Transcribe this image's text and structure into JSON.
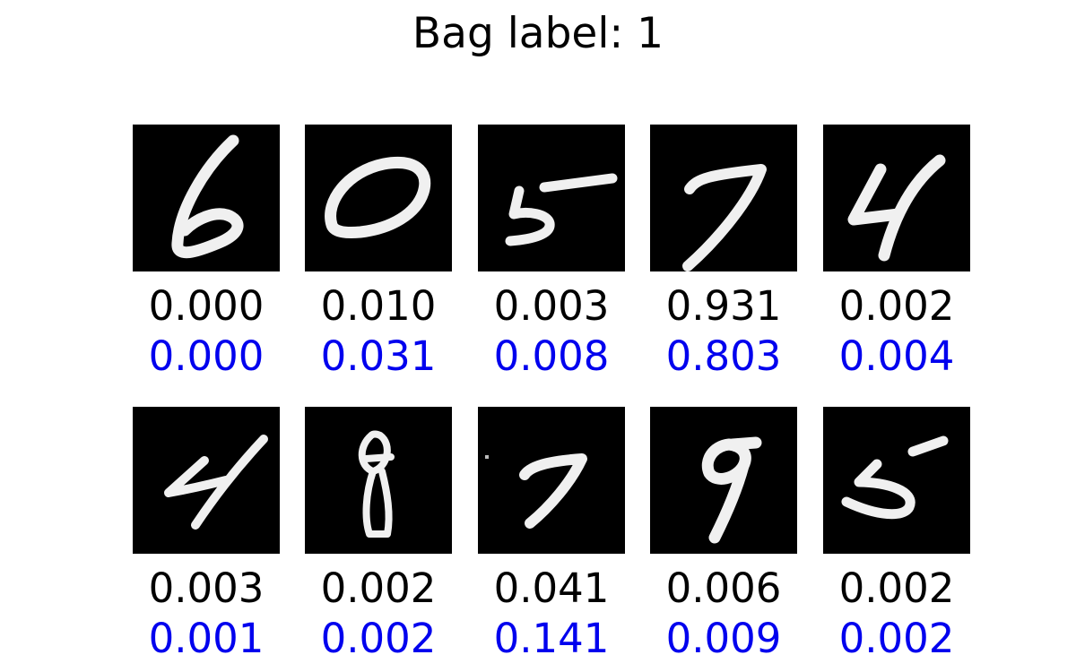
{
  "title": "Bag label: 1",
  "colors": {
    "primary_text": "#000000",
    "secondary_text": "#0000ee",
    "image_background": "#000000",
    "digit_stroke": "#f0f0f0"
  },
  "instances": [
    {
      "digit": "6",
      "score_a": "0.000",
      "score_b": "0.000"
    },
    {
      "digit": "0",
      "score_a": "0.010",
      "score_b": "0.031"
    },
    {
      "digit": "5",
      "score_a": "0.003",
      "score_b": "0.008"
    },
    {
      "digit": "7",
      "score_a": "0.931",
      "score_b": "0.803"
    },
    {
      "digit": "4",
      "score_a": "0.002",
      "score_b": "0.004"
    },
    {
      "digit": "4",
      "score_a": "0.003",
      "score_b": "0.001"
    },
    {
      "digit": "8",
      "score_a": "0.002",
      "score_b": "0.002"
    },
    {
      "digit": "7",
      "score_a": "0.041",
      "score_b": "0.141"
    },
    {
      "digit": "9",
      "score_a": "0.006",
      "score_b": "0.009"
    },
    {
      "digit": "5",
      "score_a": "0.002",
      "score_b": "0.002"
    }
  ]
}
